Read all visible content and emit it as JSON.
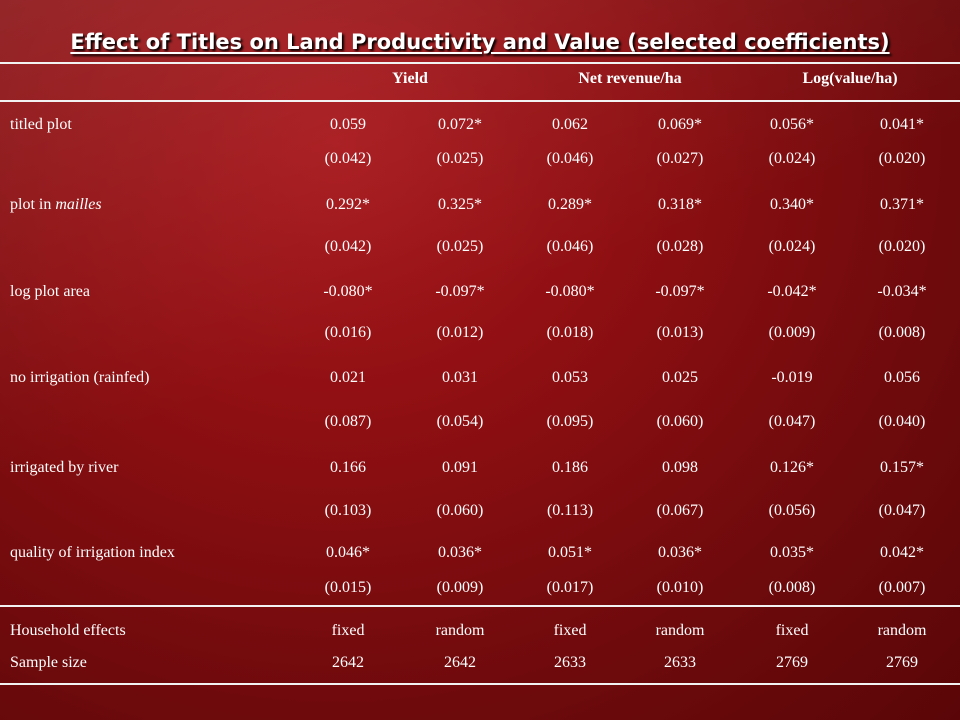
{
  "title": "Effect of Titles on Land Productivity and Value (selected coefficients)",
  "headers": [
    "Yield",
    "Net revenue/ha",
    "Log(value/ha)"
  ],
  "rows": [
    {
      "label": "titled plot",
      "coef": [
        "0.059",
        "0.072*",
        "0.062",
        "0.069*",
        "0.056*",
        "0.041*"
      ],
      "se": [
        "(0.042)",
        "(0.025)",
        "(0.046)",
        "(0.027)",
        "(0.024)",
        "(0.020)"
      ]
    },
    {
      "label_prefix": "plot in ",
      "label_italic": "mailles",
      "coef": [
        "0.292*",
        "0.325*",
        "0.289*",
        "0.318*",
        "0.340*",
        "0.371*"
      ],
      "se": [
        "(0.042)",
        "(0.025)",
        "(0.046)",
        "(0.028)",
        "(0.024)",
        "(0.020)"
      ]
    },
    {
      "label": "log plot area",
      "coef": [
        "-0.080*",
        "-0.097*",
        "-0.080*",
        "-0.097*",
        "-0.042*",
        "-0.034*"
      ],
      "se": [
        "(0.016)",
        "(0.012)",
        "(0.018)",
        "(0.013)",
        "(0.009)",
        "(0.008)"
      ]
    },
    {
      "label": "no irrigation (rainfed)",
      "coef": [
        "0.021",
        "0.031",
        "0.053",
        "0.025",
        "-0.019",
        "0.056"
      ],
      "se": [
        "(0.087)",
        "(0.054)",
        "(0.095)",
        "(0.060)",
        "(0.047)",
        "(0.040)"
      ]
    },
    {
      "label": "irrigated by river",
      "coef": [
        "0.166",
        "0.091",
        "0.186",
        "0.098",
        "0.126*",
        "0.157*"
      ],
      "se": [
        "(0.103)",
        "(0.060)",
        "(0.113)",
        "(0.067)",
        "(0.056)",
        "(0.047)"
      ]
    },
    {
      "label": "quality of irrigation index",
      "coef": [
        "0.046*",
        "0.036*",
        "0.051*",
        "0.036*",
        "0.035*",
        "0.042*"
      ],
      "se": [
        "(0.015)",
        "(0.009)",
        "(0.017)",
        "(0.010)",
        "(0.008)",
        "(0.007)"
      ]
    }
  ],
  "footer": [
    {
      "label": "Household effects",
      "values": [
        "fixed",
        "random",
        "fixed",
        "random",
        "fixed",
        "random"
      ]
    },
    {
      "label": "Sample size",
      "values": [
        "2642",
        "2642",
        "2633",
        "2633",
        "2769",
        "2769"
      ]
    }
  ]
}
